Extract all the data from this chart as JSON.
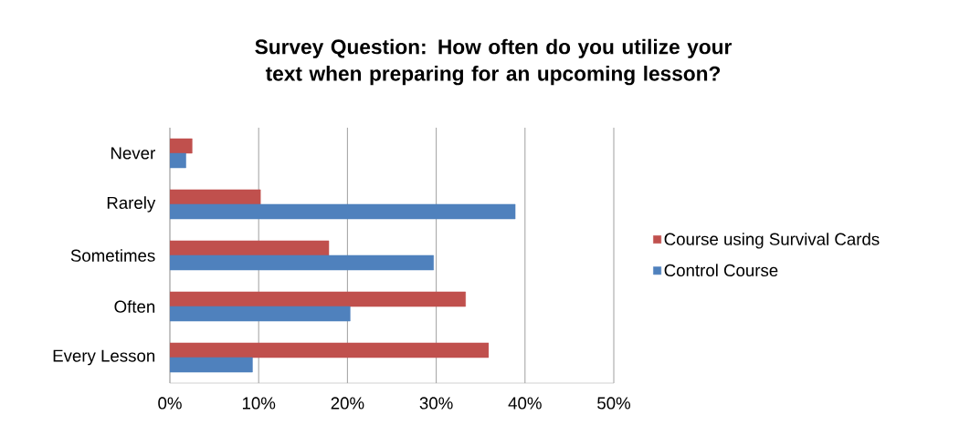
{
  "chart_data": {
    "type": "bar",
    "orientation": "horizontal",
    "title": "Survey Question: How often do you utilize your text when preparing for an upcoming lesson?",
    "categories": [
      "Never",
      "Rarely",
      "Sometimes",
      "Often",
      "Every Lesson"
    ],
    "series": [
      {
        "name": "Course using Survival Cards",
        "color": "#c0504d",
        "values": [
          2.5,
          10.2,
          17.9,
          33.3,
          35.9
        ]
      },
      {
        "name": "Control Course",
        "color": "#4f81bd",
        "values": [
          1.8,
          38.9,
          29.7,
          20.3,
          9.3
        ]
      }
    ],
    "xlim": [
      0,
      50
    ],
    "xticks": [
      {
        "value": 0,
        "label": "0%"
      },
      {
        "value": 10,
        "label": "10%"
      },
      {
        "value": 20,
        "label": "20%"
      },
      {
        "value": 30,
        "label": "30%"
      },
      {
        "value": 40,
        "label": "40%"
      },
      {
        "value": 50,
        "label": "50%"
      }
    ],
    "grid": "x",
    "legend": "right"
  }
}
